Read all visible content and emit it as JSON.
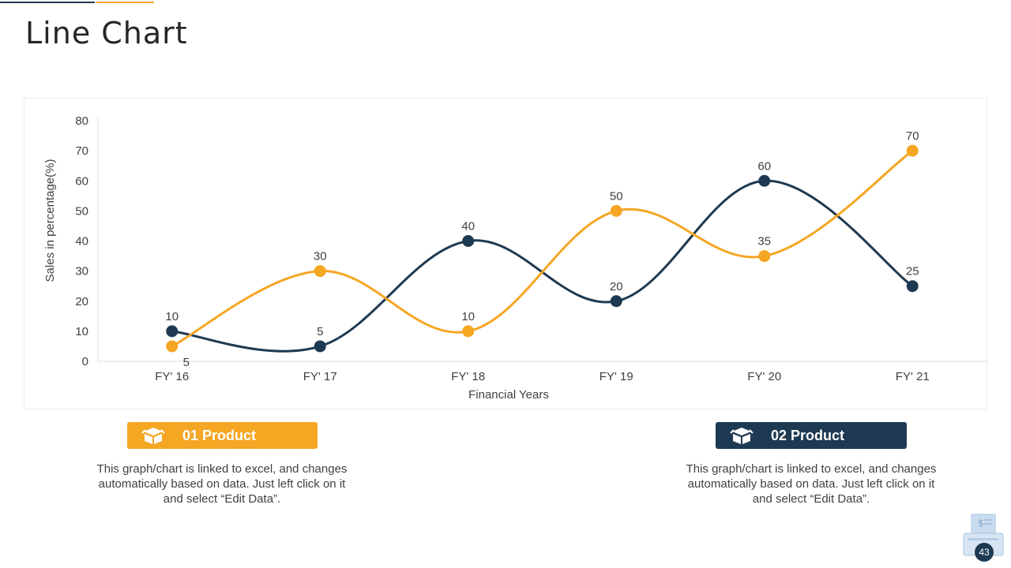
{
  "slide": {
    "title": "Line Chart",
    "page_number": "43"
  },
  "colors": {
    "accent": "#f5a623",
    "dark": "#1e3a52",
    "text": "#404040"
  },
  "products": [
    {
      "label": "01 Product",
      "description": "This graph/chart is linked to excel, and changes automatically based on data. Just left click on it and select “Edit Data”.",
      "icon": "box-icon",
      "color": "#f5a623"
    },
    {
      "label": "02 Product",
      "description": "This graph/chart is linked to excel, and changes automatically based on data. Just left click on it and select “Edit Data”.",
      "icon": "box-icon",
      "color": "#1e3a52"
    }
  ],
  "chart_data": {
    "type": "line",
    "xlabel": "Financial Years",
    "ylabel": "Sales in percentage(%)",
    "categories": [
      "FY' 16",
      "FY' 17",
      "FY' 18",
      "FY' 19",
      "FY' 20",
      "FY' 21"
    ],
    "ylim": [
      0,
      80
    ],
    "yticks": [
      0,
      10,
      20,
      30,
      40,
      50,
      60,
      70,
      80
    ],
    "grid": false,
    "smooth": true,
    "series": [
      {
        "color": "#1e3a52",
        "values": [
          10,
          5,
          40,
          20,
          60,
          25
        ]
      },
      {
        "color": "#f5a623",
        "values": [
          5,
          30,
          10,
          50,
          35,
          70
        ]
      }
    ]
  }
}
